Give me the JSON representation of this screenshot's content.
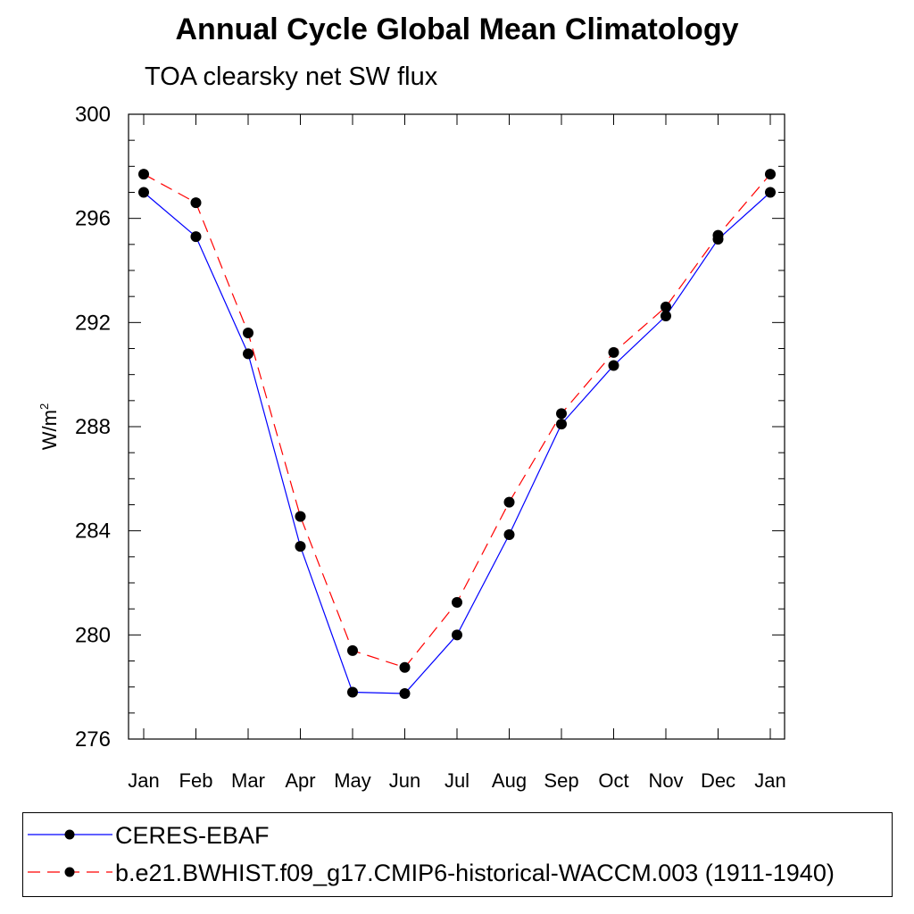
{
  "title": "Annual Cycle Global Mean Climatology",
  "subtitle": "TOA clearsky net SW flux",
  "chart_data": {
    "type": "line",
    "title": "Annual Cycle Global Mean Climatology",
    "subtitle": "TOA clearsky net SW flux",
    "ylabel": "W/m",
    "ylabel_superscript": "2",
    "xlabel": "",
    "categories": [
      "Jan",
      "Feb",
      "Mar",
      "Apr",
      "May",
      "Jun",
      "Jul",
      "Aug",
      "Sep",
      "Oct",
      "Nov",
      "Dec",
      "Jan"
    ],
    "ylim": [
      276,
      300
    ],
    "yticks": [
      276,
      280,
      284,
      288,
      292,
      296,
      300
    ],
    "grid": false,
    "legend_position": "bottom",
    "series": [
      {
        "name": "CERES-EBAF",
        "color": "#0000ff",
        "line_style": "solid",
        "marker": "circle",
        "values": [
          297.0,
          295.3,
          290.8,
          283.4,
          277.8,
          277.75,
          280.0,
          283.85,
          288.1,
          290.35,
          292.25,
          295.2,
          297.0
        ]
      },
      {
        "name": "b.e21.BWHIST.f09_g17.CMIP6-historical-WACCM.003 (1911-1940)",
        "color": "#ff0000",
        "line_style": "dashed",
        "marker": "circle",
        "values": [
          297.7,
          296.6,
          291.6,
          284.55,
          279.4,
          278.75,
          281.25,
          285.1,
          288.5,
          290.85,
          292.6,
          295.35,
          297.7
        ]
      }
    ]
  }
}
